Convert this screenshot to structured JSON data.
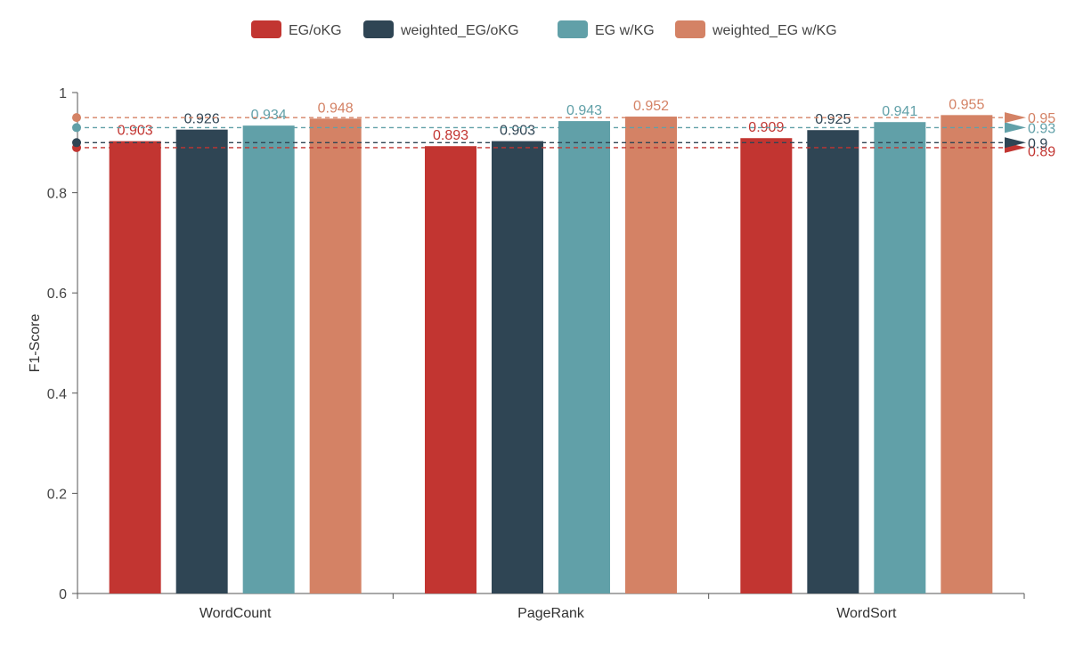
{
  "chart_data": {
    "type": "bar",
    "title": "",
    "xlabel": "",
    "ylabel": "F1-Score",
    "ylim": [
      0,
      1
    ],
    "yticks": [
      0,
      0.2,
      0.4,
      0.6,
      0.8,
      1
    ],
    "ytick_labels": [
      "0",
      "0.2",
      "0.4",
      "0.6",
      "0.8",
      "1"
    ],
    "categories": [
      "WordCount",
      "PageRank",
      "WordSort"
    ],
    "grid": false,
    "legend_position": "top-center",
    "series": [
      {
        "name": "EG/oKG",
        "color": "#c23531",
        "values": [
          0.903,
          0.893,
          0.909
        ],
        "value_labels": [
          "0.903",
          "0.893",
          "0.909"
        ],
        "average": 0.89,
        "average_label": "0.89"
      },
      {
        "name": "weighted_EG/oKG",
        "color": "#2f4554",
        "values": [
          0.926,
          0.903,
          0.925
        ],
        "value_labels": [
          "0.926",
          "0.903",
          "0.925"
        ],
        "average": 0.9,
        "average_label": "0.9"
      },
      {
        "name": "EG w/KG",
        "color": "#61a0a8",
        "values": [
          0.934,
          0.943,
          0.941
        ],
        "value_labels": [
          "0.934",
          "0.943",
          "0.941"
        ],
        "average": 0.93,
        "average_label": "0.93"
      },
      {
        "name": "weighted_EG w/KG",
        "color": "#d48265",
        "values": [
          0.948,
          0.952,
          0.955
        ],
        "value_labels": [
          "0.948",
          "0.952",
          "0.955"
        ],
        "average": 0.95,
        "average_label": "0.95"
      }
    ]
  }
}
